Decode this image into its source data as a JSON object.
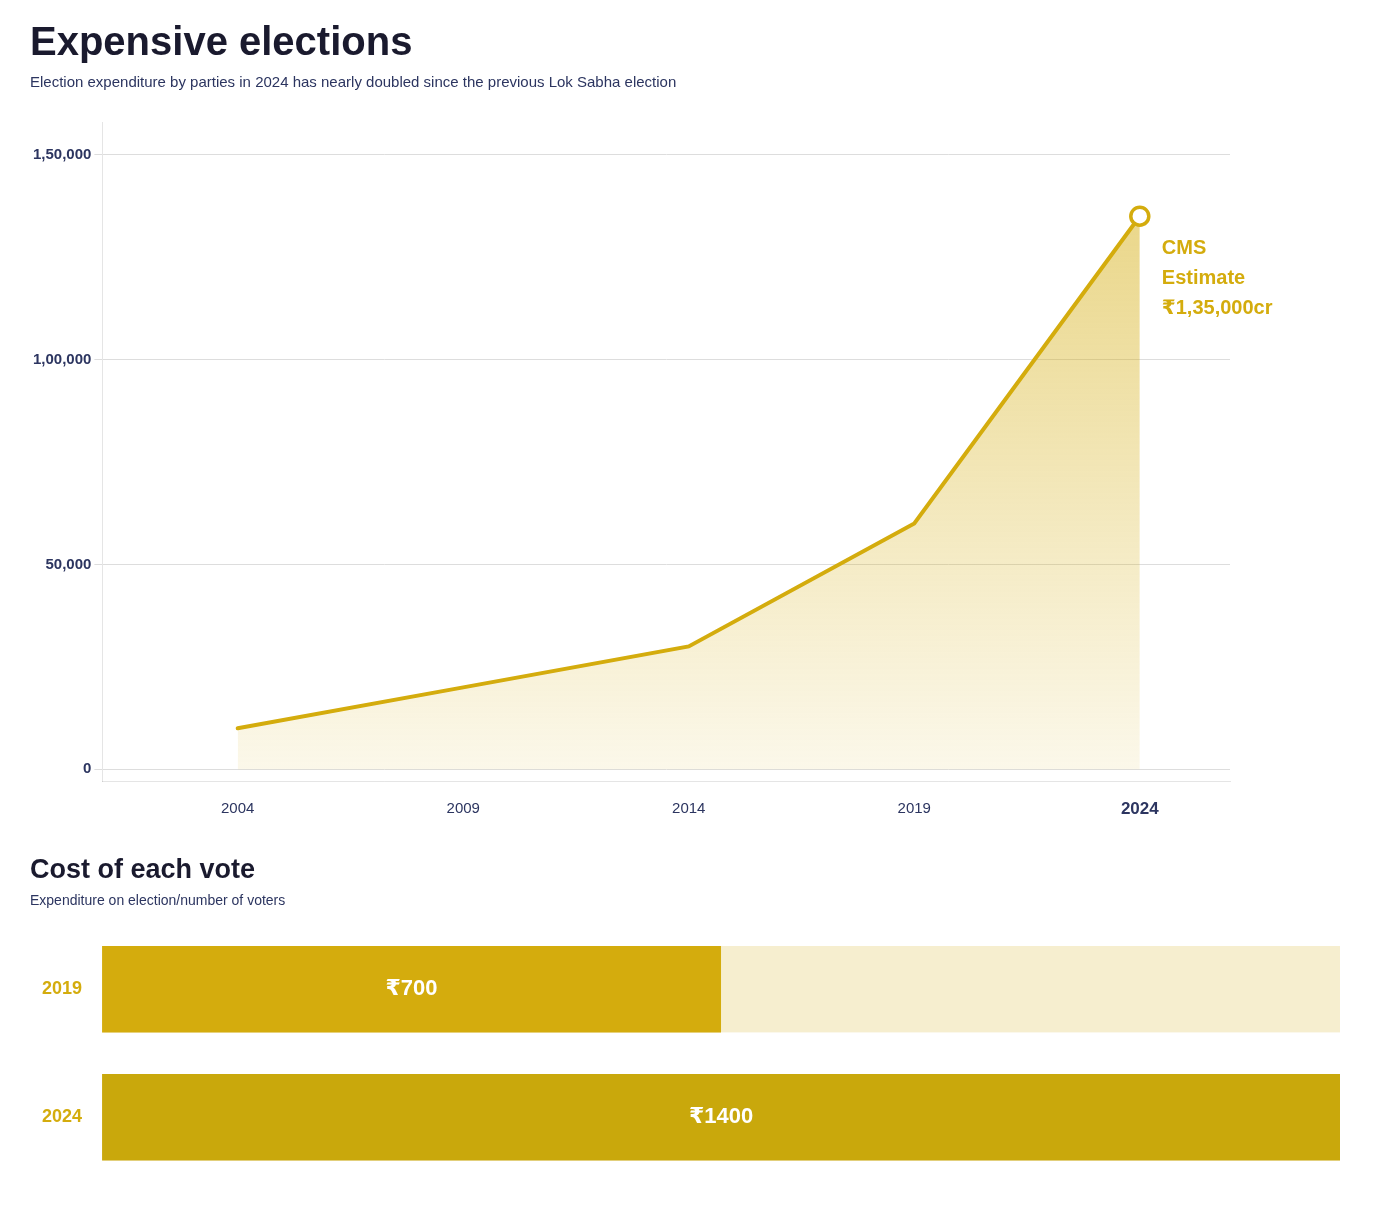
{
  "chart_data": [
    {
      "type": "line",
      "title": "Expensive elections",
      "subtitle": "Election expenditure by parties in 2024 has nearly doubled since the previous Lok Sabha election",
      "x": [
        2004,
        2009,
        2014,
        2019,
        2024
      ],
      "values": [
        10000,
        20000,
        30000,
        60000,
        135000
      ],
      "color": "#D4AC0D",
      "annotations": [
        "CMS",
        "Estimate",
        "₹1,35,000cr"
      ],
      "xlim": [
        2001,
        2026
      ],
      "xticks": [
        2004,
        2009,
        2014,
        2019,
        2024
      ],
      "ylim": [
        -3000,
        158000
      ],
      "yticks": [
        0,
        {
          "value": 50000,
          "label": "50,000"
        },
        {
          "value": 100000,
          "label": "1,00,000"
        },
        {
          "value": 150000,
          "label": "1,50,000"
        }
      ],
      "grid": true
    },
    {
      "type": "bar",
      "orientation": "horizontal",
      "title": "Cost of each vote",
      "subtitle": "Expenditure on election/number of voters",
      "categories": [
        "2019",
        "2024"
      ],
      "values": [
        700,
        1400
      ],
      "value_labels": [
        "₹700",
        "₹1400"
      ],
      "data_labels": true,
      "colors": [
        "#D4AC0D",
        "#C9A80C"
      ],
      "xlim": [
        0,
        1400
      ],
      "tick_labels": "y",
      "grid": false
    }
  ]
}
